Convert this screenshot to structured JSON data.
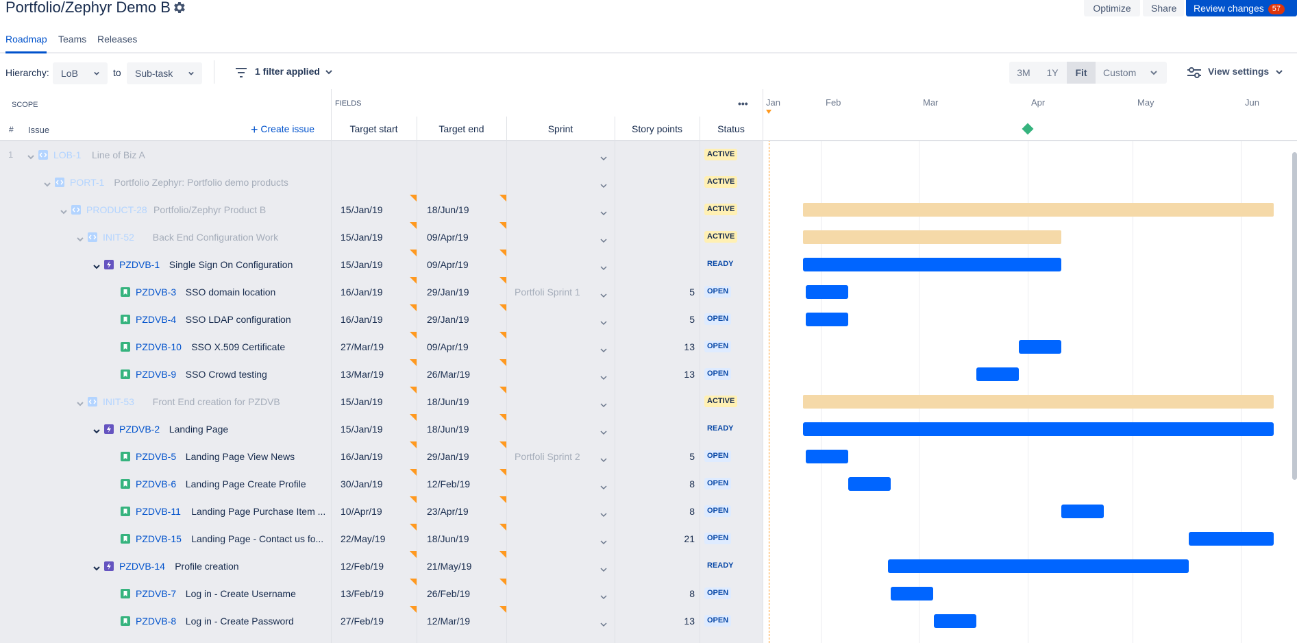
{
  "header": {
    "title": "Portfolio/Zephyr Demo B",
    "optimize_label": "Optimize",
    "share_label": "Share",
    "review_label": "Review changes",
    "review_count": "57"
  },
  "tabs": [
    {
      "label": "Roadmap",
      "active": true
    },
    {
      "label": "Teams"
    },
    {
      "label": "Releases"
    }
  ],
  "toolbar": {
    "hierarchy_label": "Hierarchy:",
    "hierarchy_from": "LoB",
    "to_label": "to",
    "hierarchy_to": "Sub-task",
    "filter_label": "1 filter applied",
    "zoom_options": [
      "3M",
      "1Y",
      "Fit",
      "Custom"
    ],
    "zoom_selected": "Fit",
    "view_settings_label": "View settings"
  },
  "table_header": {
    "scope": "SCOPE",
    "fields": "FIELDS",
    "hash": "#",
    "issue": "Issue",
    "create_issue": "Create issue",
    "target_start": "Target start",
    "target_end": "Target end",
    "sprint": "Sprint",
    "story_points": "Story points",
    "status": "Status",
    "more": "•••"
  },
  "timeline": {
    "months": [
      "Jan",
      "Feb",
      "Mar",
      "Apr",
      "May",
      "Jun"
    ]
  },
  "colors": {
    "accent": "#0052cc",
    "bar_blue": "#0065ff",
    "bar_epic": "#f5d9a8",
    "epic_icon": "#6554c0",
    "story_icon": "#36b37e",
    "today_line": "#ff991f",
    "milestone": "#36b37e"
  },
  "rows": [
    {
      "num": "1",
      "type": "lob",
      "key": "LOB-1",
      "summary": "Line of Biz A",
      "start": "",
      "end": "",
      "sprint": "",
      "points": "",
      "status": "ACTIVE",
      "faded": true
    },
    {
      "type": "portfolio",
      "key": "PORT-1",
      "summary": "Portfolio Zephyr: Portfolio demo products",
      "start": "",
      "end": "",
      "sprint": "",
      "points": "",
      "status": "ACTIVE",
      "faded": true
    },
    {
      "type": "product",
      "key": "PRODUCT-28",
      "summary": "Portfolio/Zephyr Product B",
      "start": "15/Jan/19",
      "end": "18/Jun/19",
      "sprint": "",
      "points": "",
      "status": "ACTIVE",
      "faded": true
    },
    {
      "type": "initiative",
      "key": "INIT-52",
      "summary": "Back End Configuration Work",
      "start": "15/Jan/19",
      "end": "09/Apr/19",
      "sprint": "",
      "points": "",
      "status": "ACTIVE",
      "faded": true
    },
    {
      "type": "epic",
      "key": "PZDVB-1",
      "summary": "Single Sign On Configuration",
      "start": "15/Jan/19",
      "end": "09/Apr/19",
      "sprint": "",
      "points": "",
      "status": "READY"
    },
    {
      "type": "story",
      "key": "PZDVB-3",
      "summary": "SSO domain location",
      "start": "16/Jan/19",
      "end": "29/Jan/19",
      "sprint": "Portfoli Sprint 1",
      "points": "5",
      "status": "OPEN"
    },
    {
      "type": "story",
      "key": "PZDVB-4",
      "summary": "SSO LDAP configuration",
      "start": "16/Jan/19",
      "end": "29/Jan/19",
      "sprint": "",
      "points": "5",
      "status": "OPEN"
    },
    {
      "type": "story",
      "key": "PZDVB-10",
      "summary": "SSO X.509 Certificate",
      "start": "27/Mar/19",
      "end": "09/Apr/19",
      "sprint": "",
      "points": "13",
      "status": "OPEN"
    },
    {
      "type": "story",
      "key": "PZDVB-9",
      "summary": "SSO Crowd testing",
      "start": "13/Mar/19",
      "end": "26/Mar/19",
      "sprint": "",
      "points": "13",
      "status": "OPEN"
    },
    {
      "type": "initiative",
      "key": "INIT-53",
      "summary": "Front End creation for PZDVB",
      "start": "15/Jan/19",
      "end": "18/Jun/19",
      "sprint": "",
      "points": "",
      "status": "ACTIVE",
      "faded": true
    },
    {
      "type": "epic",
      "key": "PZDVB-2",
      "summary": "Landing Page",
      "start": "15/Jan/19",
      "end": "18/Jun/19",
      "sprint": "",
      "points": "",
      "status": "READY"
    },
    {
      "type": "story",
      "key": "PZDVB-5",
      "summary": "Landing Page View News",
      "start": "16/Jan/19",
      "end": "29/Jan/19",
      "sprint": "Portfoli Sprint 2",
      "points": "5",
      "status": "OPEN"
    },
    {
      "type": "story",
      "key": "PZDVB-6",
      "summary": "Landing Page Create Profile",
      "start": "30/Jan/19",
      "end": "12/Feb/19",
      "sprint": "",
      "points": "8",
      "status": "OPEN"
    },
    {
      "type": "story",
      "key": "PZDVB-11",
      "summary": "Landing Page Purchase Item ...",
      "start": "10/Apr/19",
      "end": "23/Apr/19",
      "sprint": "",
      "points": "8",
      "status": "OPEN"
    },
    {
      "type": "story",
      "key": "PZDVB-15",
      "summary": "Landing Page - Contact us fo...",
      "start": "22/May/19",
      "end": "18/Jun/19",
      "sprint": "",
      "points": "21",
      "status": "OPEN"
    },
    {
      "type": "epic",
      "key": "PZDVB-14",
      "summary": "Profile creation",
      "start": "12/Feb/19",
      "end": "21/May/19",
      "sprint": "",
      "points": "",
      "status": "READY"
    },
    {
      "type": "story",
      "key": "PZDVB-7",
      "summary": "Log in - Create Username",
      "start": "13/Feb/19",
      "end": "26/Feb/19",
      "sprint": "",
      "points": "8",
      "status": "OPEN"
    },
    {
      "type": "story",
      "key": "PZDVB-8",
      "summary": "Log in - Create Password",
      "start": "27/Feb/19",
      "end": "12/Mar/19",
      "sprint": "",
      "points": "13",
      "status": "OPEN"
    }
  ]
}
